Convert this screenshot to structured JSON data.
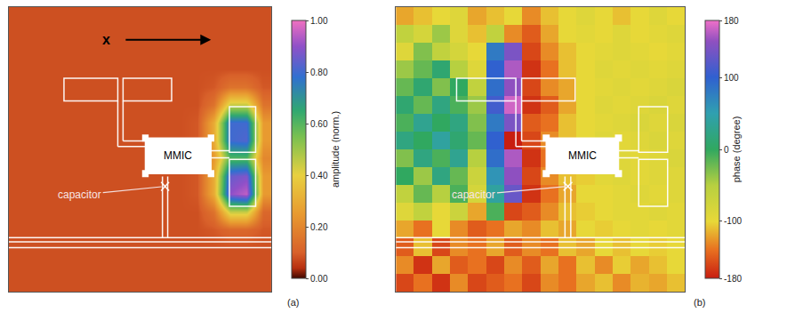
{
  "chart_data": [
    {
      "type": "heatmap",
      "title": "(a)",
      "tick_labels": false,
      "xlim": [
        -0.5,
        15.5
      ],
      "ylim": [
        15.5,
        -0.5
      ],
      "annotations": {
        "axis_label": "x",
        "chip_label": "MMIC",
        "part_label": "capacitor"
      },
      "z": [
        [
          0.08,
          0.08,
          0.08,
          0.08,
          0.08,
          0.08,
          0.08,
          0.08,
          0.08,
          0.08,
          0.08,
          0.08,
          0.08,
          0.08,
          0.08,
          0.08
        ],
        [
          0.08,
          0.08,
          0.08,
          0.08,
          0.08,
          0.08,
          0.08,
          0.08,
          0.08,
          0.08,
          0.08,
          0.08,
          0.08,
          0.08,
          0.08,
          0.08
        ],
        [
          0.08,
          0.08,
          0.08,
          0.08,
          0.08,
          0.08,
          0.08,
          0.08,
          0.08,
          0.08,
          0.08,
          0.08,
          0.08,
          0.08,
          0.08,
          0.08
        ],
        [
          0.08,
          0.08,
          0.08,
          0.08,
          0.08,
          0.08,
          0.08,
          0.08,
          0.08,
          0.08,
          0.08,
          0.08,
          0.08,
          0.08,
          0.08,
          0.08
        ],
        [
          0.08,
          0.08,
          0.08,
          0.08,
          0.08,
          0.08,
          0.08,
          0.08,
          0.08,
          0.08,
          0.08,
          0.08,
          0.09,
          0.15,
          0.15,
          0.09
        ],
        [
          0.08,
          0.08,
          0.08,
          0.08,
          0.08,
          0.08,
          0.08,
          0.08,
          0.08,
          0.08,
          0.08,
          0.08,
          0.15,
          0.45,
          0.45,
          0.15
        ],
        [
          0.08,
          0.08,
          0.08,
          0.08,
          0.08,
          0.08,
          0.08,
          0.08,
          0.08,
          0.08,
          0.08,
          0.09,
          0.3,
          0.8,
          0.8,
          0.25
        ],
        [
          0.08,
          0.08,
          0.08,
          0.08,
          0.08,
          0.08,
          0.08,
          0.08,
          0.08,
          0.08,
          0.08,
          0.09,
          0.3,
          0.8,
          0.82,
          0.25
        ],
        [
          0.08,
          0.08,
          0.08,
          0.08,
          0.08,
          0.08,
          0.08,
          0.08,
          0.08,
          0.08,
          0.08,
          0.09,
          0.25,
          0.6,
          0.6,
          0.2
        ],
        [
          0.08,
          0.08,
          0.08,
          0.08,
          0.08,
          0.08,
          0.08,
          0.08,
          0.08,
          0.08,
          0.08,
          0.09,
          0.3,
          0.85,
          0.88,
          0.25
        ],
        [
          0.08,
          0.08,
          0.08,
          0.08,
          0.08,
          0.08,
          0.08,
          0.08,
          0.08,
          0.08,
          0.08,
          0.09,
          0.3,
          0.9,
          0.95,
          0.25
        ],
        [
          0.08,
          0.08,
          0.08,
          0.08,
          0.08,
          0.08,
          0.08,
          0.08,
          0.08,
          0.08,
          0.08,
          0.08,
          0.15,
          0.45,
          0.45,
          0.12
        ],
        [
          0.08,
          0.08,
          0.08,
          0.08,
          0.08,
          0.08,
          0.08,
          0.08,
          0.08,
          0.08,
          0.08,
          0.08,
          0.09,
          0.12,
          0.12,
          0.09
        ],
        [
          0.08,
          0.08,
          0.08,
          0.08,
          0.08,
          0.08,
          0.08,
          0.08,
          0.08,
          0.08,
          0.08,
          0.08,
          0.08,
          0.08,
          0.08,
          0.08
        ],
        [
          0.08,
          0.08,
          0.08,
          0.08,
          0.08,
          0.08,
          0.08,
          0.08,
          0.08,
          0.08,
          0.08,
          0.08,
          0.08,
          0.08,
          0.08,
          0.08
        ],
        [
          0.08,
          0.08,
          0.08,
          0.08,
          0.08,
          0.08,
          0.08,
          0.08,
          0.08,
          0.08,
          0.08,
          0.08,
          0.08,
          0.08,
          0.08,
          0.08
        ]
      ],
      "colorbar": {
        "title": "amplitude (norm.)",
        "range": [
          0,
          1
        ],
        "ticks": [
          {
            "value": 0,
            "label": "0.00"
          },
          {
            "value": 0.2,
            "label": "0.20"
          },
          {
            "value": 0.4,
            "label": "0.40"
          },
          {
            "value": 0.6,
            "label": "0.60"
          },
          {
            "value": 0.8,
            "label": "0.80"
          },
          {
            "value": 1,
            "label": "1.00"
          }
        ]
      }
    },
    {
      "type": "heatmap",
      "title": "(b)",
      "tick_labels": false,
      "xlim": [
        -0.5,
        15.5
      ],
      "ylim": [
        15.5,
        -0.5
      ],
      "annotations": {
        "chip_label": "MMIC",
        "part_label": "capacitor"
      },
      "z": [
        [
          -120,
          -110,
          -100,
          -90,
          -120,
          -110,
          -100,
          -130,
          -110,
          -100,
          -90,
          -100,
          -110,
          -100,
          -90,
          -100
        ],
        [
          -60,
          -80,
          -40,
          -90,
          -110,
          -60,
          -130,
          -150,
          -120,
          -100,
          -95,
          -100,
          -90,
          -100,
          -95,
          -90
        ],
        [
          -90,
          -30,
          -60,
          -80,
          -100,
          80,
          140,
          -160,
          -130,
          -110,
          -100,
          -95,
          -90,
          -95,
          -100,
          -95
        ],
        [
          -40,
          -20,
          10,
          -50,
          -90,
          100,
          160,
          -170,
          -140,
          -110,
          -100,
          -90,
          -95,
          -90,
          -95,
          -90
        ],
        [
          -20,
          10,
          -30,
          0,
          -60,
          90,
          150,
          -160,
          -130,
          -120,
          -100,
          -95,
          -90,
          -95,
          -90,
          -85
        ],
        [
          10,
          -20,
          20,
          -10,
          -40,
          110,
          170,
          -170,
          -150,
          -120,
          -100,
          -90,
          -95,
          -90,
          -85,
          -90
        ],
        [
          -10,
          30,
          0,
          20,
          -30,
          80,
          140,
          -150,
          -140,
          -110,
          -100,
          -95,
          -90,
          -85,
          -90,
          -85
        ],
        [
          20,
          0,
          40,
          10,
          -20,
          100,
          -180,
          -160,
          -130,
          -110,
          -100,
          -90,
          -95,
          -90,
          -85,
          -90
        ],
        [
          -30,
          20,
          -10,
          30,
          -50,
          90,
          160,
          -170,
          -140,
          -120,
          -100,
          -95,
          -90,
          -95,
          -90,
          -85
        ],
        [
          0,
          -40,
          20,
          -20,
          -70,
          60,
          150,
          -160,
          -130,
          -110,
          -105,
          -95,
          -90,
          -95,
          -90,
          -90
        ],
        [
          -60,
          -20,
          -50,
          -10,
          -80,
          40,
          130,
          -170,
          -140,
          -120,
          -100,
          -100,
          -95,
          -90,
          -95,
          -90
        ],
        [
          -90,
          -60,
          -100,
          -70,
          -120,
          -10,
          -160,
          -150,
          -130,
          -110,
          -105,
          -100,
          -95,
          -95,
          -90,
          -95
        ],
        [
          -120,
          -140,
          -100,
          -130,
          -150,
          -140,
          -120,
          -130,
          -110,
          -120,
          -100,
          -105,
          -100,
          -95,
          -100,
          -95
        ],
        [
          -150,
          -110,
          -160,
          -130,
          -140,
          -120,
          -150,
          -130,
          -140,
          -110,
          -120,
          -100,
          -110,
          -100,
          -105,
          -100
        ],
        [
          -130,
          -170,
          -120,
          -150,
          -140,
          -160,
          -130,
          -150,
          -120,
          -140,
          -110,
          -130,
          -105,
          -120,
          -110,
          -100
        ],
        [
          -160,
          -140,
          -170,
          -130,
          -160,
          -150,
          -140,
          -160,
          -130,
          -140,
          -120,
          -110,
          -130,
          -115,
          -120,
          -110
        ]
      ],
      "colorbar": {
        "title": "phase (degree)",
        "range": [
          -180,
          180
        ],
        "ticks": [
          -180,
          -100,
          0,
          100,
          180
        ]
      }
    }
  ]
}
